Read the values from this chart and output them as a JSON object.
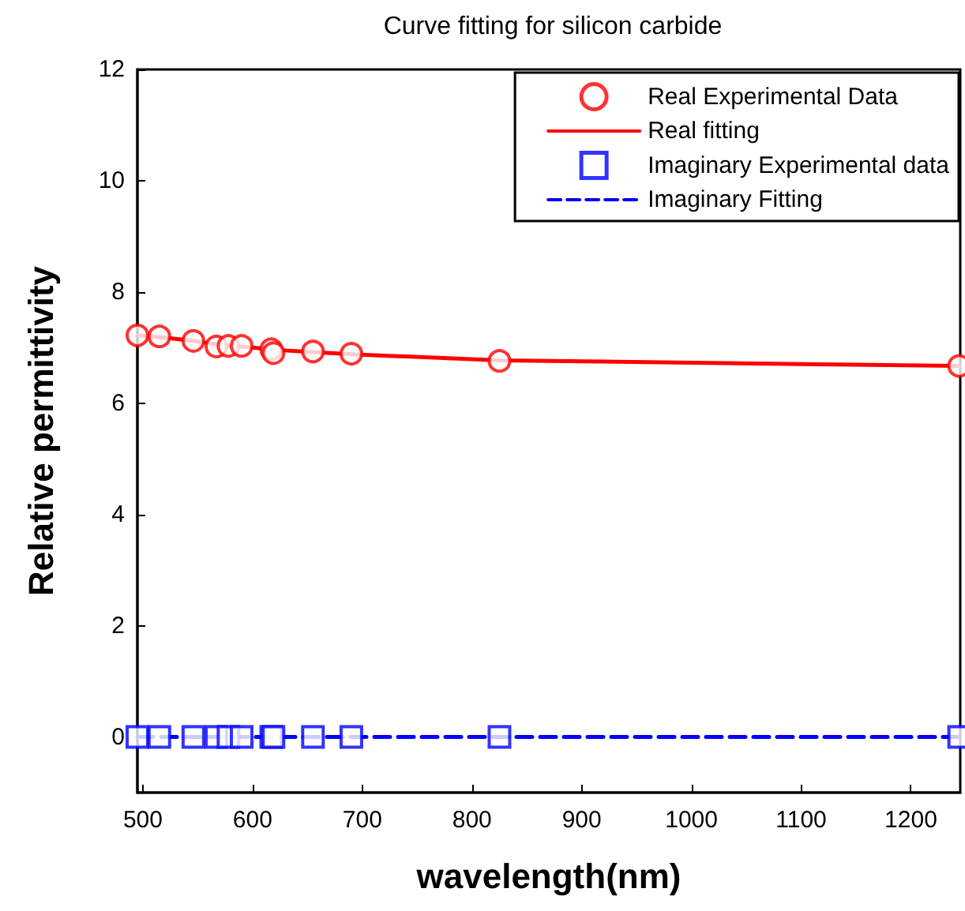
{
  "chart_data": {
    "type": "line",
    "title": "Curve fitting for silicon carbide",
    "xlabel": "wavelength(nm)",
    "ylabel": "Relative permittivity",
    "x": [
      495,
      515,
      546,
      567,
      578,
      590,
      617,
      619,
      655,
      690,
      825,
      1244
    ],
    "series": [
      {
        "name": "Real Experimental Data",
        "type": "scatter",
        "marker": "circle",
        "color": "#ff0000",
        "values": [
          7.22,
          7.2,
          7.12,
          7.02,
          7.03,
          7.03,
          6.97,
          6.9,
          6.93,
          6.89,
          6.76,
          6.67
        ]
      },
      {
        "name": "Real fitting",
        "type": "line",
        "marker": "none",
        "line_style": "solid",
        "color": "#ff0000",
        "values": [
          7.22,
          7.19,
          7.12,
          7.06,
          7.04,
          7.02,
          6.97,
          6.96,
          6.92,
          6.88,
          6.77,
          6.67
        ]
      },
      {
        "name": "Imaginary Experimental data",
        "type": "scatter",
        "marker": "square",
        "color": "#0000ff",
        "values": [
          0,
          0,
          0,
          0,
          0,
          0,
          0,
          0,
          0,
          0,
          0,
          0
        ]
      },
      {
        "name": "Imaginary Fitting",
        "type": "line",
        "marker": "none",
        "line_style": "dashed",
        "color": "#0000ff",
        "values": [
          0,
          0,
          0,
          0,
          0,
          0,
          0,
          0,
          0,
          0,
          0,
          0
        ]
      }
    ],
    "xlim": [
      495,
      1245
    ],
    "xticks": [
      500,
      600,
      700,
      800,
      900,
      1000,
      1100,
      1200
    ],
    "ylim": [
      -1,
      12
    ],
    "yticks": [
      0,
      2,
      4,
      6,
      8,
      10,
      12
    ],
    "grid": false,
    "legend": "top right"
  }
}
